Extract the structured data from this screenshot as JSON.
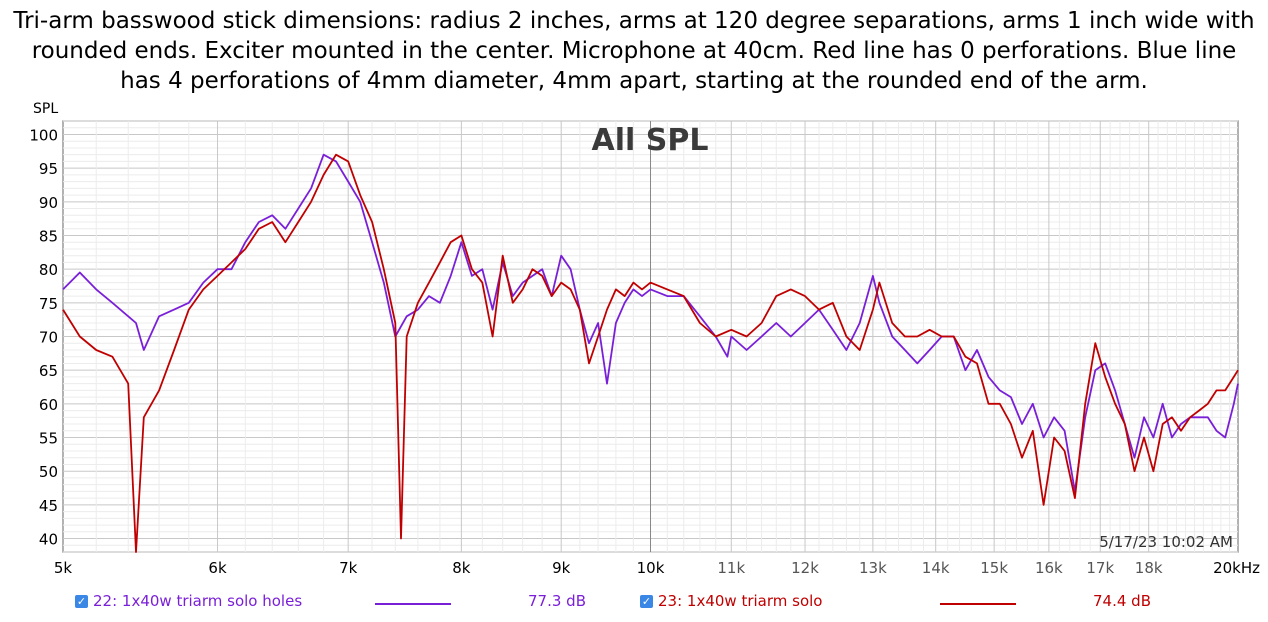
{
  "caption": "Tri-arm basswood stick dimensions: radius 2 inches, arms at 120 degree separations, arms 1 inch wide with rounded ends. Exciter mounted in the center. Microphone at 40cm. Red line has 0 perforations. Blue line has 4 perforations of 4mm diameter, 4mm apart, starting at the rounded end of the arm.",
  "chart_data": {
    "type": "line",
    "title": "All SPL",
    "ylabel": "SPL",
    "xlabel": "",
    "x_scale": "log",
    "xlim": [
      5000,
      20000
    ],
    "ylim": [
      38,
      102
    ],
    "grid": true,
    "timestamp": "5/17/23 10:02 AM",
    "x_tick_labels": [
      {
        "x": 5000,
        "label": "5k"
      },
      {
        "x": 6000,
        "label": "6k"
      },
      {
        "x": 7000,
        "label": "7k"
      },
      {
        "x": 8000,
        "label": "8k"
      },
      {
        "x": 9000,
        "label": "9k"
      },
      {
        "x": 10000,
        "label": "10k"
      },
      {
        "x": 11000,
        "label": "11k"
      },
      {
        "x": 12000,
        "label": "12k"
      },
      {
        "x": 13000,
        "label": "13k"
      },
      {
        "x": 14000,
        "label": "14k"
      },
      {
        "x": 15000,
        "label": "15k"
      },
      {
        "x": 16000,
        "label": "16k"
      },
      {
        "x": 17000,
        "label": "17k"
      },
      {
        "x": 18000,
        "label": "18k"
      },
      {
        "x": 20000,
        "label": "20kHz"
      }
    ],
    "y_ticks": [
      40,
      45,
      50,
      55,
      60,
      65,
      70,
      75,
      80,
      85,
      90,
      95,
      100
    ],
    "series": [
      {
        "name": "22: 1x40w triarm solo holes",
        "value_label": "77.3 dB",
        "color": "#7a1fd8",
        "x": [
          5000,
          5100,
          5200,
          5300,
          5400,
          5450,
          5500,
          5600,
          5700,
          5800,
          5900,
          6000,
          6100,
          6200,
          6300,
          6400,
          6500,
          6600,
          6700,
          6800,
          6900,
          7000,
          7100,
          7200,
          7300,
          7400,
          7500,
          7600,
          7700,
          7800,
          7900,
          8000,
          8100,
          8200,
          8300,
          8400,
          8500,
          8600,
          8700,
          8800,
          8900,
          9000,
          9100,
          9200,
          9300,
          9400,
          9500,
          9600,
          9700,
          9800,
          9900,
          10000,
          10200,
          10400,
          10600,
          10800,
          10950,
          11000,
          11200,
          11400,
          11600,
          11800,
          12000,
          12200,
          12400,
          12600,
          12800,
          13000,
          13100,
          13300,
          13500,
          13700,
          13900,
          14100,
          14300,
          14500,
          14700,
          14900,
          15100,
          15300,
          15500,
          15700,
          15900,
          16100,
          16300,
          16500,
          16700,
          16900,
          17100,
          17300,
          17500,
          17700,
          17900,
          18100,
          18300,
          18500,
          18700,
          18900,
          19100,
          19300,
          19500,
          19700,
          19900,
          20000
        ],
        "y": [
          77,
          79.5,
          77,
          75,
          73,
          72,
          68,
          73,
          74,
          75,
          78,
          80,
          80,
          84,
          87,
          88,
          86,
          89,
          92,
          97,
          96,
          93,
          90,
          84,
          78,
          70,
          73,
          74,
          76,
          75,
          79,
          84,
          79,
          80,
          74,
          81,
          76,
          78,
          79,
          80,
          76,
          82,
          80,
          74,
          69,
          72,
          63,
          72,
          75,
          77,
          76,
          77,
          76,
          76,
          73,
          70,
          67,
          70,
          68,
          70,
          72,
          70,
          72,
          74,
          71,
          68,
          72,
          79,
          75,
          70,
          68,
          66,
          68,
          70,
          70,
          65,
          68,
          64,
          62,
          61,
          57,
          60,
          55,
          58,
          56,
          47,
          58,
          65,
          66,
          62,
          57,
          52,
          58,
          55,
          60,
          55,
          57,
          58,
          58,
          58,
          56,
          55,
          60,
          63
        ]
      },
      {
        "name": "23: 1x40w triarm solo",
        "value_label": "74.4 dB",
        "color": "#c00000",
        "x": [
          5000,
          5100,
          5200,
          5300,
          5400,
          5450,
          5500,
          5600,
          5700,
          5800,
          5900,
          6000,
          6100,
          6200,
          6300,
          6400,
          6500,
          6600,
          6700,
          6800,
          6900,
          7000,
          7100,
          7200,
          7300,
          7400,
          7450,
          7500,
          7600,
          7700,
          7800,
          7900,
          8000,
          8100,
          8200,
          8300,
          8400,
          8500,
          8600,
          8700,
          8800,
          8900,
          9000,
          9100,
          9200,
          9300,
          9400,
          9500,
          9600,
          9700,
          9800,
          9900,
          10000,
          10200,
          10400,
          10600,
          10800,
          11000,
          11200,
          11400,
          11600,
          11800,
          12000,
          12200,
          12400,
          12600,
          12800,
          13000,
          13100,
          13300,
          13500,
          13700,
          13900,
          14100,
          14300,
          14500,
          14700,
          14900,
          15100,
          15300,
          15500,
          15700,
          15900,
          16100,
          16300,
          16500,
          16700,
          16900,
          17100,
          17300,
          17500,
          17700,
          17900,
          18100,
          18300,
          18500,
          18700,
          18900,
          19100,
          19300,
          19500,
          19700,
          19900,
          20000
        ],
        "y": [
          74,
          70,
          68,
          67,
          63,
          38,
          58,
          62,
          68,
          74,
          77,
          79,
          81,
          83,
          86,
          87,
          84,
          87,
          90,
          94,
          97,
          96,
          91,
          87,
          80,
          72,
          40,
          70,
          75,
          78,
          81,
          84,
          85,
          80,
          78,
          70,
          82,
          75,
          77,
          80,
          79,
          76,
          78,
          77,
          74,
          66,
          70,
          74,
          77,
          76,
          78,
          77,
          78,
          77,
          76,
          72,
          70,
          71,
          70,
          72,
          76,
          77,
          76,
          74,
          75,
          70,
          68,
          74,
          78,
          72,
          70,
          70,
          71,
          70,
          70,
          67,
          66,
          60,
          60,
          57,
          52,
          56,
          45,
          55,
          53,
          46,
          60,
          69,
          64,
          60,
          57,
          50,
          55,
          50,
          57,
          58,
          56,
          58,
          59,
          60,
          62,
          62,
          64,
          65
        ]
      }
    ]
  }
}
